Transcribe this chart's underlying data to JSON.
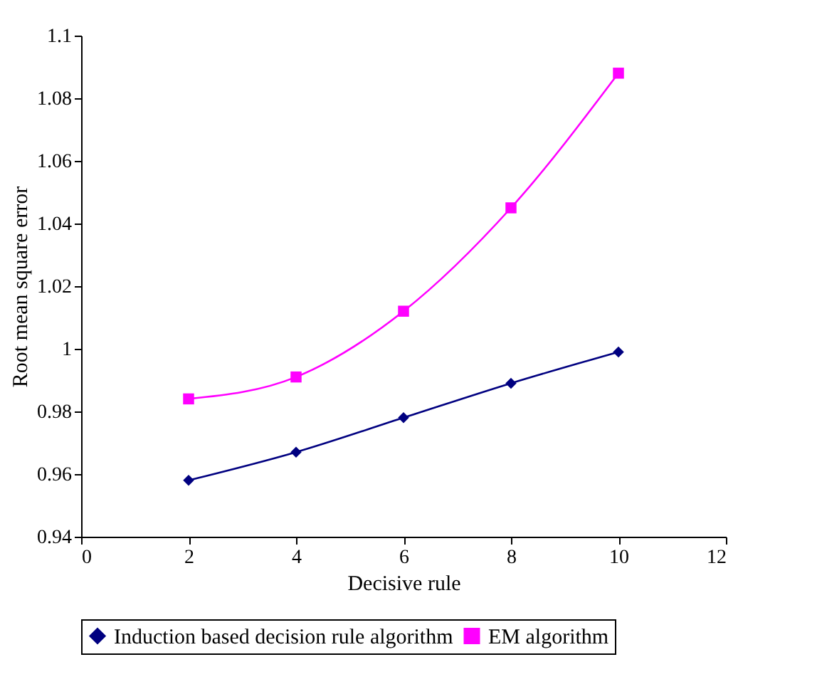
{
  "chart_data": {
    "type": "line",
    "xlabel": "Decisive rule",
    "ylabel": "Root mean square error",
    "x": [
      2,
      4,
      6,
      8,
      10
    ],
    "series": [
      {
        "name": "Induction based decision rule algorithm",
        "color": "#000080",
        "marker": "diamond",
        "values": [
          0.958,
          0.967,
          0.978,
          0.989,
          0.999
        ]
      },
      {
        "name": "EM algorithm",
        "color": "#ff00ff",
        "marker": "square",
        "values": [
          0.984,
          0.991,
          1.012,
          1.045,
          1.088
        ]
      }
    ],
    "xlim": [
      0,
      12
    ],
    "xticks": [
      0,
      2,
      4,
      6,
      8,
      10,
      12
    ],
    "ylim": [
      0.94,
      1.1
    ],
    "yticks": [
      0.94,
      0.96,
      0.98,
      1,
      1.02,
      1.04,
      1.06,
      1.08,
      1.1
    ],
    "grid": false,
    "legend": "bottom"
  }
}
